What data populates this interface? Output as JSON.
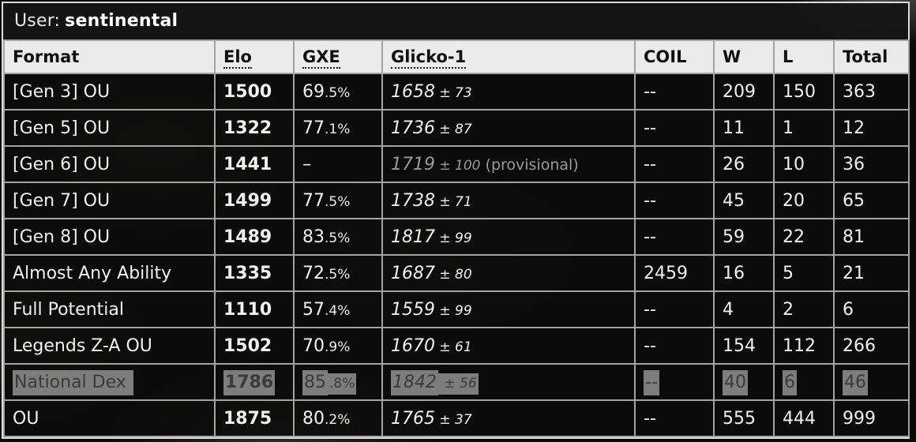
{
  "user_bar": {
    "label": "User:",
    "username": "sentinental"
  },
  "table": {
    "columns": [
      {
        "key": "format",
        "label": "Format",
        "abbr": false
      },
      {
        "key": "elo",
        "label": "Elo",
        "abbr": true
      },
      {
        "key": "gxe",
        "label": "GXE",
        "abbr": true
      },
      {
        "key": "glicko",
        "label": "Glicko-1",
        "abbr": true
      },
      {
        "key": "coil",
        "label": "COIL",
        "abbr": false
      },
      {
        "key": "w",
        "label": "W",
        "abbr": false
      },
      {
        "key": "l",
        "label": "L",
        "abbr": false
      },
      {
        "key": "total",
        "label": "Total",
        "abbr": false
      }
    ],
    "rows": [
      {
        "format": "[Gen 3] OU",
        "elo": "1500",
        "gxe": {
          "main": "69",
          "small": ".5%"
        },
        "glicko": {
          "main": "1658",
          "small": " ± 73",
          "note": ""
        },
        "coil": "--",
        "w": "209",
        "l": "150",
        "total": "363",
        "muted": false,
        "selected": false
      },
      {
        "format": "[Gen 5] OU",
        "elo": "1322",
        "gxe": {
          "main": "77",
          "small": ".1%"
        },
        "glicko": {
          "main": "1736",
          "small": " ± 87",
          "note": ""
        },
        "coil": "--",
        "w": "11",
        "l": "1",
        "total": "12",
        "muted": false,
        "selected": false
      },
      {
        "format": "[Gen 6] OU",
        "elo": "1441",
        "gxe": {
          "main": "–",
          "small": ""
        },
        "glicko": {
          "main": "1719",
          "small": " ± 100",
          "note": " (provisional)"
        },
        "coil": "--",
        "w": "26",
        "l": "10",
        "total": "36",
        "muted": true,
        "selected": false
      },
      {
        "format": "[Gen 7] OU",
        "elo": "1499",
        "gxe": {
          "main": "77",
          "small": ".5%"
        },
        "glicko": {
          "main": "1738",
          "small": " ± 71",
          "note": ""
        },
        "coil": "--",
        "w": "45",
        "l": "20",
        "total": "65",
        "muted": false,
        "selected": false
      },
      {
        "format": "[Gen 8] OU",
        "elo": "1489",
        "gxe": {
          "main": "83",
          "small": ".5%"
        },
        "glicko": {
          "main": "1817",
          "small": " ± 99",
          "note": ""
        },
        "coil": "--",
        "w": "59",
        "l": "22",
        "total": "81",
        "muted": false,
        "selected": false
      },
      {
        "format": "Almost Any Ability",
        "elo": "1335",
        "gxe": {
          "main": "72",
          "small": ".5%"
        },
        "glicko": {
          "main": "1687",
          "small": " ± 80",
          "note": ""
        },
        "coil": "2459",
        "w": "16",
        "l": "5",
        "total": "21",
        "muted": false,
        "selected": false
      },
      {
        "format": "Full Potential",
        "elo": "1110",
        "gxe": {
          "main": "57",
          "small": ".4%"
        },
        "glicko": {
          "main": "1559",
          "small": " ± 99",
          "note": ""
        },
        "coil": "--",
        "w": "4",
        "l": "2",
        "total": "6",
        "muted": false,
        "selected": false
      },
      {
        "format": "Legends Z-A OU",
        "elo": "1502",
        "gxe": {
          "main": "70",
          "small": ".9%"
        },
        "glicko": {
          "main": "1670",
          "small": " ± 61",
          "note": ""
        },
        "coil": "--",
        "w": "154",
        "l": "112",
        "total": "266",
        "muted": false,
        "selected": false
      },
      {
        "format": "National Dex ",
        "elo": "1786",
        "gxe": {
          "main": "85",
          "small": ".8%"
        },
        "glicko": {
          "main": "1842",
          "small": " ± 56",
          "note": ""
        },
        "coil": "--",
        "w": "40",
        "l": "6",
        "total": "46",
        "muted": false,
        "selected": true
      },
      {
        "format": "OU",
        "elo": "1875",
        "gxe": {
          "main": "80",
          "small": ".2%"
        },
        "glicko": {
          "main": "1765",
          "small": " ± 37",
          "note": ""
        },
        "coil": "--",
        "w": "555",
        "l": "444",
        "total": "999",
        "muted": false,
        "selected": false
      }
    ]
  },
  "colors": {
    "header_bg": "#ebebeb",
    "header_text": "#101010",
    "body_bg": "#0c0c0c",
    "body_text": "#f0f0f0",
    "muted_text": "#9a9a9a",
    "selection_bg": "#7d7d7d",
    "selection_text": "#3a3a3a",
    "cell_border": "#a3a3a3",
    "outer_border": "#dcdcdc",
    "title_bar_bg": "#161616"
  }
}
